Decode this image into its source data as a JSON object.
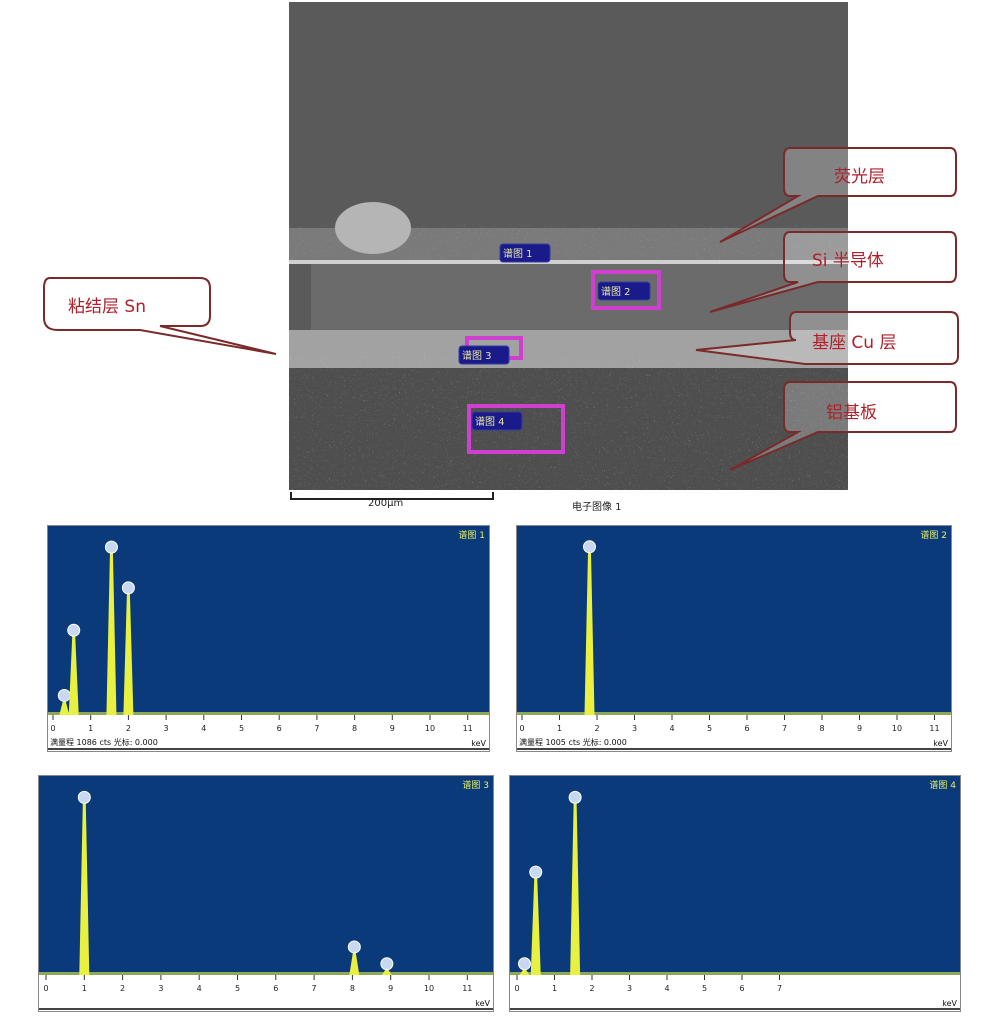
{
  "sem_image": {
    "scale_bar": "200μm",
    "image_title": "电子图像 1",
    "spot_labels": [
      "谱图 1",
      "谱图 2",
      "谱图 3",
      "谱图 4"
    ]
  },
  "callouts": {
    "phosphor": "荧光层",
    "si": "Si 半导体",
    "cu": "基座 Cu 层",
    "al": "铝基板",
    "sn": "粘结层 Sn"
  },
  "colors": {
    "spectrum_bg": "#0a3a7a",
    "peak": "#e8f040",
    "callout": "#b0202a",
    "spot_box": "#d040d0"
  },
  "chart_data": [
    {
      "type": "line",
      "title": "谱图 1",
      "xlabel": "keV",
      "xlim": [
        0,
        11
      ],
      "xticks": [
        0,
        1,
        2,
        3,
        4,
        5,
        6,
        7,
        8,
        9,
        10,
        11
      ],
      "footer": "满量程 1086 cts 光标: 0.000",
      "ylim": [
        0,
        1086
      ],
      "peaks": [
        {
          "x": 0.3,
          "y": 120
        },
        {
          "x": 0.55,
          "y": 520
        },
        {
          "x": 1.55,
          "y": 1030
        },
        {
          "x": 2.0,
          "y": 780
        }
      ]
    },
    {
      "type": "line",
      "title": "谱图 2",
      "xlabel": "keV",
      "xlim": [
        0,
        11
      ],
      "xticks": [
        0,
        1,
        2,
        3,
        4,
        5,
        6,
        7,
        8,
        9,
        10,
        11
      ],
      "footer": "满量程 1005 cts 光标: 0.000",
      "ylim": [
        0,
        1005
      ],
      "peaks": [
        {
          "x": 1.8,
          "y": 955
        }
      ]
    },
    {
      "type": "line",
      "title": "谱图 3",
      "xlabel": "keV",
      "xlim": [
        0,
        11
      ],
      "xticks": [
        0,
        1,
        2,
        3,
        4,
        5,
        6,
        7,
        8,
        9,
        10,
        11
      ],
      "footer": "",
      "ylim": [
        0,
        1
      ],
      "peaks": [
        {
          "x": 1.0,
          "y": 0.95
        },
        {
          "x": 8.05,
          "y": 0.15
        },
        {
          "x": 8.9,
          "y": 0.06
        }
      ]
    },
    {
      "type": "line",
      "title": "谱图 4",
      "xlabel": "keV",
      "xlim": [
        0,
        11
      ],
      "xticks": [
        0,
        1,
        2,
        3,
        4,
        5,
        6,
        7
      ],
      "footer": "",
      "ylim": [
        0,
        1
      ],
      "peaks": [
        {
          "x": 0.2,
          "y": 0.06
        },
        {
          "x": 0.5,
          "y": 0.55
        },
        {
          "x": 1.55,
          "y": 0.95
        }
      ]
    }
  ]
}
